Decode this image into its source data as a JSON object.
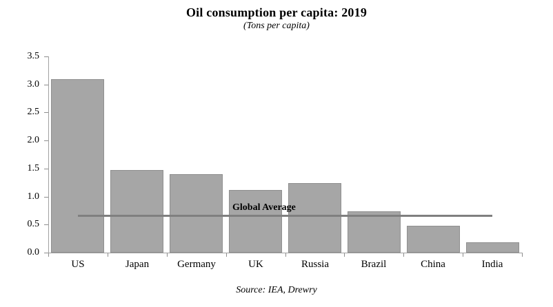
{
  "header": {
    "title": "Oil consumption per capita: 2019",
    "subtitle": "(Tons per capita)"
  },
  "footer": {
    "source": "Source: IEA, Drewry"
  },
  "chart_data": {
    "type": "bar",
    "title": "Oil consumption per capita: 2019",
    "subtitle": "(Tons per capita)",
    "categories": [
      "US",
      "Japan",
      "Germany",
      "UK",
      "Russia",
      "Brazil",
      "China",
      "India"
    ],
    "values": [
      3.1,
      1.47,
      1.4,
      1.12,
      1.24,
      0.74,
      0.48,
      0.18
    ],
    "ylim": [
      0,
      3.5
    ],
    "ytick_step": 0.5,
    "ytick_labels": [
      "0.0",
      "0.5",
      "1.0",
      "1.5",
      "2.0",
      "2.5",
      "3.0",
      "3.5"
    ],
    "reference_line": {
      "label": "Global Average",
      "value": 0.66,
      "span_fraction": [
        0.063,
        0.937
      ],
      "label_x_fraction": 0.389
    },
    "grid": false,
    "legend": "none",
    "colors": {
      "bar_fill": "#a6a6a6",
      "bar_border": "#8f8f8f",
      "axis": "#a0a0a0",
      "reference_line": "#7f7f7f",
      "text": "#000000"
    },
    "source": "Source: IEA, Drewry"
  }
}
